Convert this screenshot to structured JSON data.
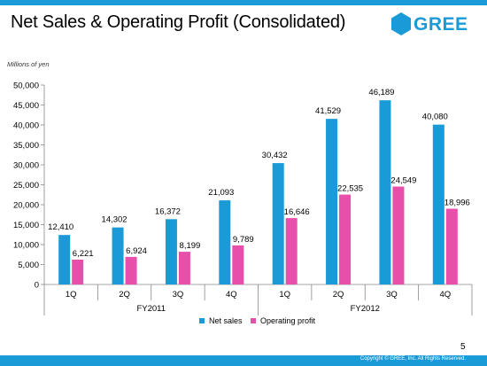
{
  "slide": {
    "title": "Net Sales & Operating Profit (Consolidated)",
    "logo_text": "GREE",
    "page_number": "5",
    "copyright": "Copyright © GREE, Inc. All Rights Reserved."
  },
  "colors": {
    "accent": "#1a9bd7",
    "net_sales": "#1a9bd7",
    "operating_profit": "#e84faa"
  },
  "chart_data": {
    "type": "bar",
    "title": "Net Sales & Operating Profit (Consolidated)",
    "ylabel": "Millions of yen",
    "ylim": [
      0,
      50000
    ],
    "yticks": [
      0,
      5000,
      10000,
      15000,
      20000,
      25000,
      30000,
      35000,
      40000,
      45000,
      50000
    ],
    "ytick_labels": [
      "0",
      "5,000",
      "10,000",
      "15,000",
      "20,000",
      "25,000",
      "30,000",
      "35,000",
      "40,000",
      "45,000",
      "50,000"
    ],
    "categories": [
      "1Q",
      "2Q",
      "3Q",
      "4Q",
      "1Q",
      "2Q",
      "3Q",
      "4Q"
    ],
    "groups": [
      {
        "label": "FY2011",
        "span": [
          0,
          3
        ]
      },
      {
        "label": "FY2012",
        "span": [
          4,
          7
        ]
      }
    ],
    "series": [
      {
        "name": "Net sales",
        "color": "#1a9bd7",
        "values": [
          12410,
          14302,
          16372,
          21093,
          30432,
          41529,
          46189,
          40080
        ],
        "labels": [
          "12,410",
          "14,302",
          "16,372",
          "21,093",
          "30,432",
          "41,529",
          "46,189",
          "40,080"
        ]
      },
      {
        "name": "Operating profit",
        "color": "#e84faa",
        "values": [
          6221,
          6924,
          8199,
          9789,
          16646,
          22535,
          24549,
          18996
        ],
        "labels": [
          "6,221",
          "6,924",
          "8,199",
          "9,789",
          "16,646",
          "22,535",
          "24,549",
          "18,996"
        ]
      }
    ],
    "legend": "bottom",
    "grid": false
  }
}
